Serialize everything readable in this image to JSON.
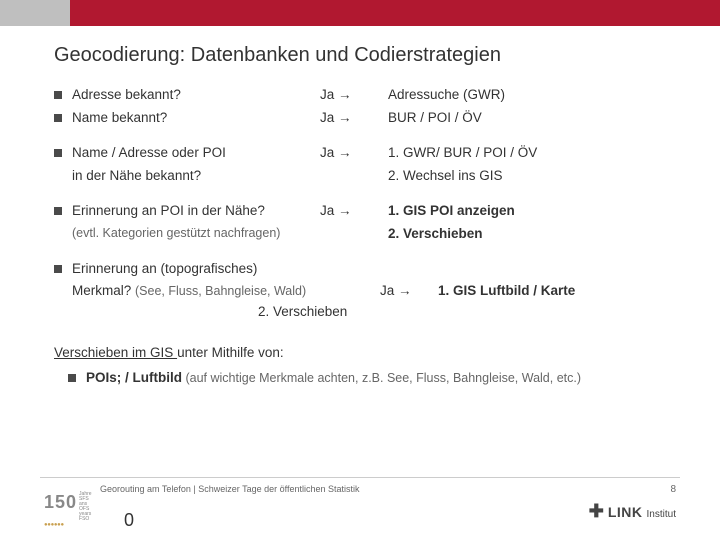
{
  "colors": {
    "accent_red": "#b11830",
    "bullet": "#4a4a4a",
    "topbar_gray": "#bfbfbf"
  },
  "title": "Geocodierung: Datenbanken und Codierstrategien",
  "rows": [
    {
      "q": "Adresse bekannt?",
      "ja": "Ja →",
      "a": "Adressuche (GWR)"
    },
    {
      "q": "Name bekannt?",
      "ja": "Ja →",
      "a": "BUR / POI / ÖV"
    }
  ],
  "row3": {
    "q1": "Name / Adresse oder POI",
    "q2": "in der Nähe bekannt?",
    "ja": "Ja →",
    "a1": "1. GWR/ BUR / POI / ÖV",
    "a2": "2. Wechsel ins GIS"
  },
  "row4": {
    "q": "Erinnerung an POI in der Nähe?",
    "sub": "(evtl. Kategorien gestützt nachfragen)",
    "ja": "Ja →",
    "a1": "1. GIS POI anzeigen",
    "a2": "2. Verschieben"
  },
  "row5": {
    "q1": "Erinnerung an (topografisches)",
    "q2_a": "Merkmal? ",
    "q2_b": "(See, Fluss, Bahngleise, Wald)",
    "ja": "Ja →",
    "a": "1. GIS Luftbild / Karte",
    "v": "2. Verschieben"
  },
  "bottom": {
    "lead_u": "Verschieben im GIS ",
    "lead_rest": "unter Mithilfe von:",
    "b_bold": "POIs; / Luftbild",
    "b_rest": " (auf wichtige Merkmale achten, z.B. See, Fluss, Bahngleise, Wald, etc.)"
  },
  "footer": {
    "line": "Georouting am Telefon | Schweizer Tage der öffentlichen Statistik",
    "pagenum": "8",
    "zero": "0",
    "logo_num": "150",
    "logo_tiny1": "Jahre SFS",
    "logo_tiny2": "ans OFS",
    "logo_tiny3": "years FSO",
    "link_plus": "✚",
    "link_text": "LINK",
    "link_inst": "Institut"
  }
}
